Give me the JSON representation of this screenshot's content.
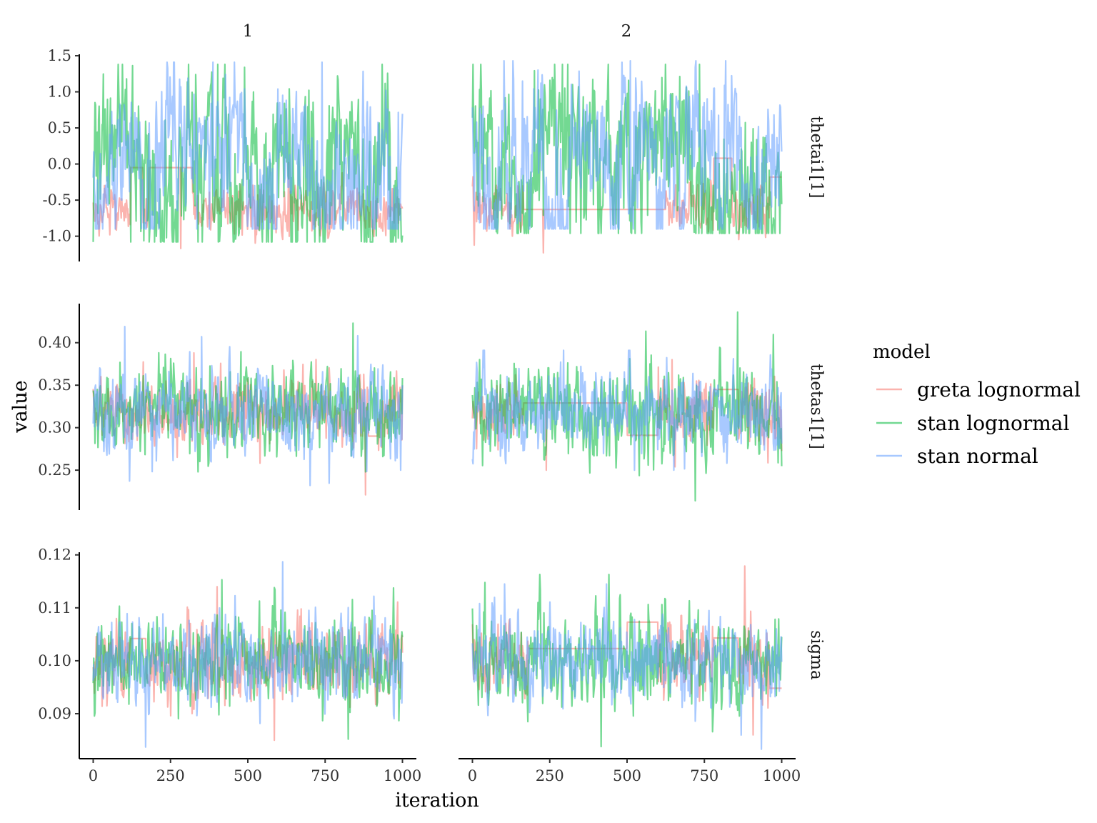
{
  "chart_data": {
    "type": "line",
    "xlabel": "iteration",
    "ylabel": "value",
    "columns": [
      "1",
      "2"
    ],
    "rows": [
      {
        "label": "thetai1[1]",
        "ylim": [
          -1.35,
          1.52
        ],
        "yticks": [
          -1.0,
          -0.5,
          0.0,
          0.5,
          1.0,
          1.5
        ],
        "ytick_labels": [
          "-1.0",
          "-0.5",
          "0.0",
          "0.5",
          "1.0",
          "1.5"
        ]
      },
      {
        "label": "thetas1[1]",
        "ylim": [
          0.203,
          0.446
        ],
        "yticks": [
          0.25,
          0.3,
          0.35,
          0.4
        ],
        "ytick_labels": [
          "0.25",
          "0.30",
          "0.35",
          "0.40"
        ]
      },
      {
        "label": "sigma",
        "ylim": [
          0.0815,
          0.1205
        ],
        "yticks": [
          0.09,
          0.1,
          0.11,
          0.12
        ],
        "ytick_labels": [
          "0.09",
          "0.10",
          "0.11",
          "0.12"
        ]
      }
    ],
    "xlim": [
      -45,
      1045
    ],
    "xticks": [
      0,
      250,
      500,
      750,
      1000
    ],
    "xtick_labels": [
      "0",
      "250",
      "500",
      "750",
      "1000"
    ],
    "legend": {
      "title": "model",
      "position": "right"
    },
    "series": [
      {
        "name": "greta lognormal",
        "color": "#F8766D"
      },
      {
        "name": "stan lognormal",
        "color": "#00BA38"
      },
      {
        "name": "stan normal",
        "color": "#619CFF"
      }
    ],
    "traces": {
      "thetai1[1]": {
        "1": {
          "greta lognormal": {
            "mean": -0.62,
            "sd": 0.16,
            "min": -1.17,
            "max": 0.02,
            "segments": [
              [
                120,
                160,
                -0.05
              ],
              [
                180,
                320,
                -0.05
              ]
            ]
          },
          "stan lognormal": {
            "mean": 0.15,
            "sd": 0.5,
            "min": -1.08,
            "max": 1.38,
            "segments": []
          },
          "stan normal": {
            "mean": 0.05,
            "sd": 0.45,
            "min": -0.9,
            "max": 1.41,
            "segments": []
          }
        },
        "2": {
          "greta lognormal": {
            "mean": -0.6,
            "sd": 0.15,
            "min": -1.23,
            "max": 0.1,
            "segments": [
              [
                165,
                625,
                -0.63
              ],
              [
                780,
                840,
                0.08
              ],
              [
                960,
                1000,
                -0.18
              ]
            ]
          },
          "stan lognormal": {
            "mean": 0.2,
            "sd": 0.5,
            "min": -0.96,
            "max": 1.38,
            "segments": []
          },
          "stan normal": {
            "mean": 0.1,
            "sd": 0.45,
            "min": -0.9,
            "max": 1.43,
            "segments": []
          }
        }
      },
      "thetas1[1]": {
        "1": {
          "greta lognormal": {
            "mean": 0.318,
            "sd": 0.02,
            "min": 0.221,
            "max": 0.388,
            "segments": [
              [
                890,
                920,
                0.29
              ]
            ]
          },
          "stan lognormal": {
            "mean": 0.32,
            "sd": 0.025,
            "min": 0.248,
            "max": 0.423,
            "segments": []
          },
          "stan normal": {
            "mean": 0.319,
            "sd": 0.023,
            "min": 0.232,
            "max": 0.419,
            "segments": []
          }
        },
        "2": {
          "greta lognormal": {
            "mean": 0.318,
            "sd": 0.02,
            "min": 0.25,
            "max": 0.38,
            "segments": [
              [
                165,
                500,
                0.329
              ],
              [
                500,
                600,
                0.291
              ],
              [
                780,
                860,
                0.345
              ]
            ]
          },
          "stan lognormal": {
            "mean": 0.32,
            "sd": 0.025,
            "min": 0.214,
            "max": 0.436,
            "segments": []
          },
          "stan normal": {
            "mean": 0.319,
            "sd": 0.023,
            "min": 0.25,
            "max": 0.391,
            "segments": []
          }
        }
      },
      "sigma": {
        "1": {
          "greta lognormal": {
            "mean": 0.1,
            "sd": 0.0035,
            "min": 0.085,
            "max": 0.114,
            "segments": [
              [
                120,
                170,
                0.1042
              ]
            ]
          },
          "stan lognormal": {
            "mean": 0.1,
            "sd": 0.004,
            "min": 0.0852,
            "max": 0.1153,
            "segments": []
          },
          "stan normal": {
            "mean": 0.1,
            "sd": 0.004,
            "min": 0.0837,
            "max": 0.1187,
            "segments": []
          }
        },
        "2": {
          "greta lognormal": {
            "mean": 0.1,
            "sd": 0.0035,
            "min": 0.086,
            "max": 0.1179,
            "segments": [
              [
                180,
                500,
                0.1023
              ],
              [
                500,
                600,
                0.1073
              ],
              [
                780,
                860,
                0.1043
              ],
              [
                960,
                1000,
                0.0948
              ]
            ]
          },
          "stan lognormal": {
            "mean": 0.1,
            "sd": 0.004,
            "min": 0.0838,
            "max": 0.1163,
            "segments": []
          },
          "stan normal": {
            "mean": 0.1,
            "sd": 0.004,
            "min": 0.0833,
            "max": 0.1145,
            "segments": []
          }
        }
      }
    }
  }
}
